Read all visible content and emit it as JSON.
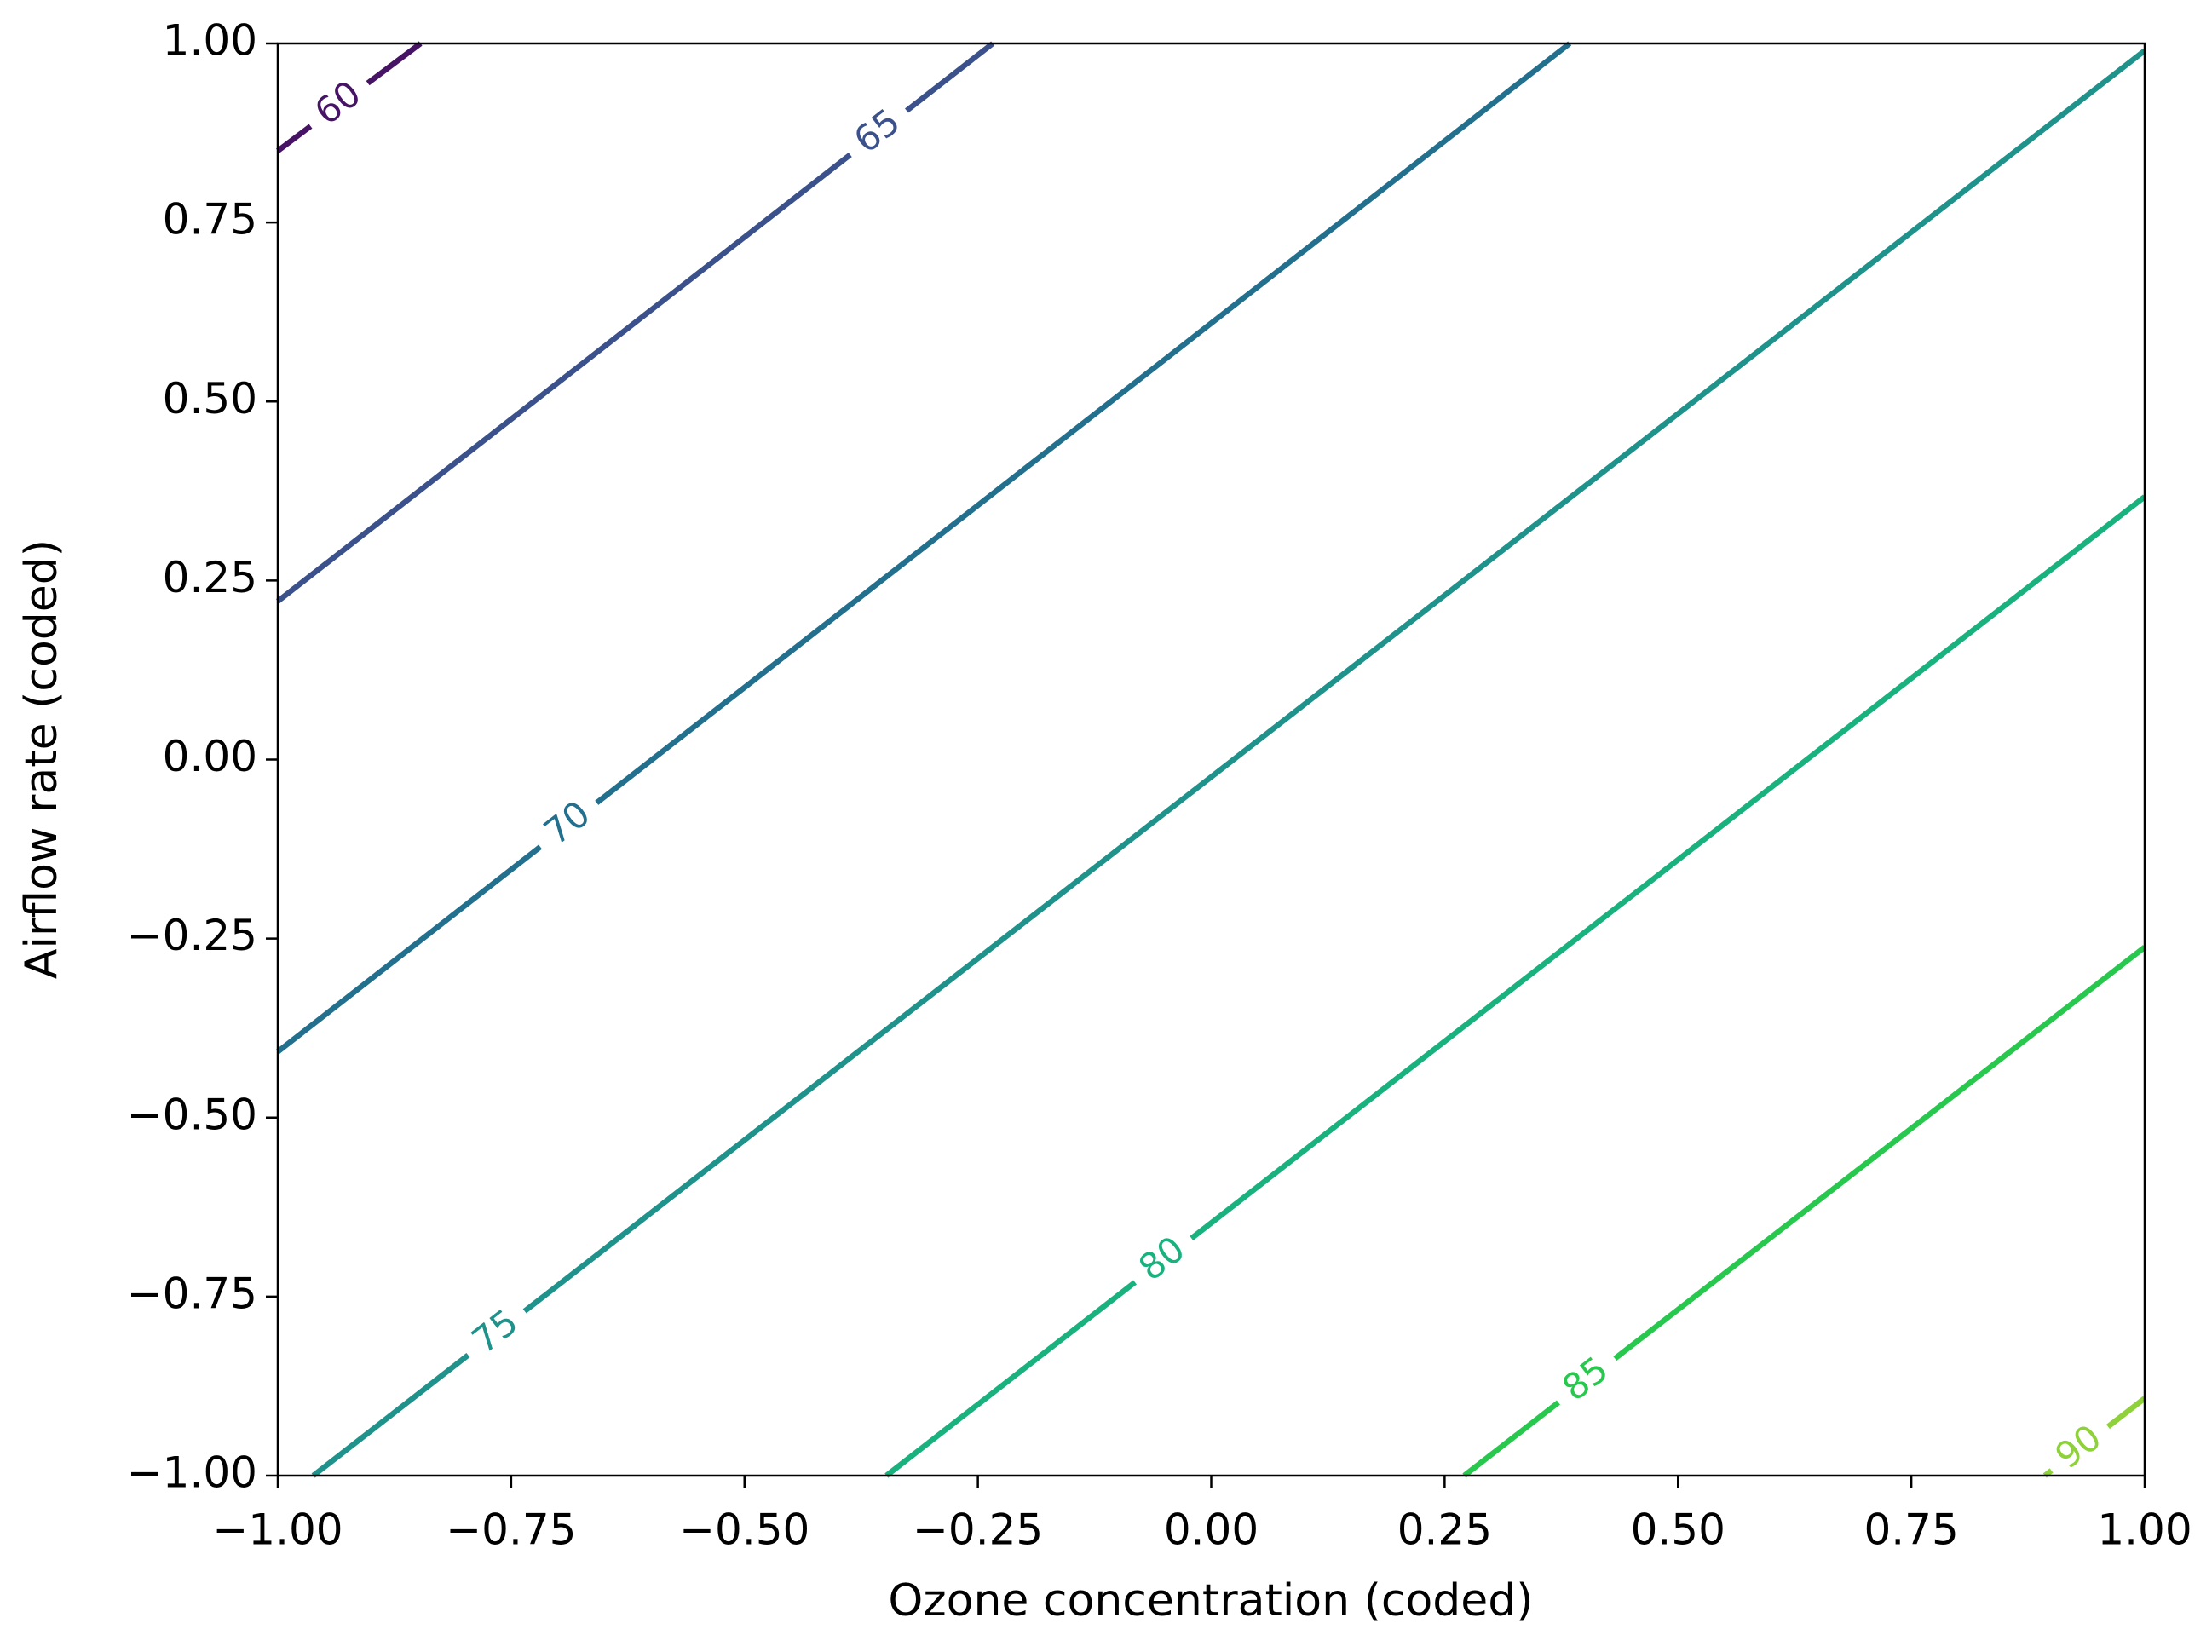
{
  "chart_data": {
    "type": "contour",
    "xlabel": "Ozone concentration (coded)",
    "ylabel": "Airflow rate (coded)",
    "xlim": [
      -1,
      1
    ],
    "ylim": [
      -1,
      1
    ],
    "xticks": [
      {
        "value": -1,
        "label": "−1.00"
      },
      {
        "value": -0.75,
        "label": "−0.75"
      },
      {
        "value": -0.5,
        "label": "−0.50"
      },
      {
        "value": -0.25,
        "label": "−0.25"
      },
      {
        "value": 0,
        "label": "0.00"
      },
      {
        "value": 0.25,
        "label": "0.25"
      },
      {
        "value": 0.5,
        "label": "0.50"
      },
      {
        "value": 0.75,
        "label": "0.75"
      },
      {
        "value": 1,
        "label": "1.00"
      }
    ],
    "yticks": [
      {
        "value": -1,
        "label": "−1.00"
      },
      {
        "value": -0.75,
        "label": "−0.75"
      },
      {
        "value": -0.5,
        "label": "−0.50"
      },
      {
        "value": -0.25,
        "label": "−0.25"
      },
      {
        "value": 0,
        "label": "0.00"
      },
      {
        "value": 0.25,
        "label": "0.25"
      },
      {
        "value": 0.5,
        "label": "0.50"
      },
      {
        "value": 0.75,
        "label": "0.75"
      },
      {
        "value": 1,
        "label": "1.00"
      }
    ],
    "contours": [
      {
        "level": 60,
        "color": "#471365",
        "x": [
          -1,
          -0.847
        ],
        "y": [
          0.85,
          1
        ]
      },
      {
        "level": 65,
        "color": "#3b518b",
        "x": [
          -1,
          -0.234
        ],
        "y": [
          0.221,
          1
        ]
      },
      {
        "level": 70,
        "color": "#22708e",
        "x": [
          -1,
          0.384
        ],
        "y": [
          -0.408,
          1
        ]
      },
      {
        "level": 75,
        "color": "#1f928c",
        "x": [
          -0.962,
          1
        ],
        "y": [
          -1,
          0.99
        ]
      },
      {
        "level": 80,
        "color": "#19b27f",
        "x": [
          -0.348,
          1
        ],
        "y": [
          -1,
          0.367
        ]
      },
      {
        "level": 85,
        "color": "#28c84f",
        "x": [
          0.271,
          1
        ],
        "y": [
          -1,
          -0.262
        ]
      },
      {
        "level": 90,
        "color": "#8fd13a",
        "x": [
          0.893,
          1
        ],
        "y": [
          -1,
          -0.892
        ]
      }
    ]
  }
}
